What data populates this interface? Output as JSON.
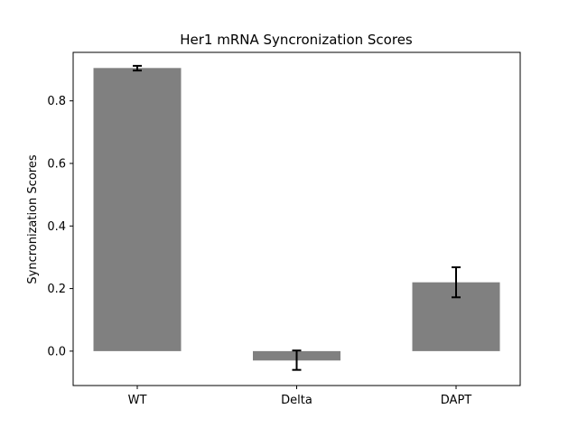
{
  "chart_data": {
    "type": "bar",
    "title": "Her1 mRNA Syncronization Scores",
    "xlabel": "",
    "ylabel": "Syncronization Scores",
    "categories": [
      "WT",
      "Delta",
      "DAPT"
    ],
    "values": [
      0.905,
      -0.03,
      0.22
    ],
    "errors": [
      {
        "low": 0.897,
        "high": 0.912
      },
      {
        "low": -0.06,
        "high": 0.002
      },
      {
        "low": 0.172,
        "high": 0.268
      }
    ],
    "ylim": [
      -0.11,
      0.955
    ],
    "yticks": [
      0.0,
      0.2,
      0.4,
      0.6,
      0.8
    ],
    "ytick_labels": [
      "0.0",
      "0.2",
      "0.4",
      "0.6",
      "0.8"
    ],
    "bar_color": "#808080",
    "error_color": "#000000",
    "grid": false,
    "legend": "none"
  }
}
